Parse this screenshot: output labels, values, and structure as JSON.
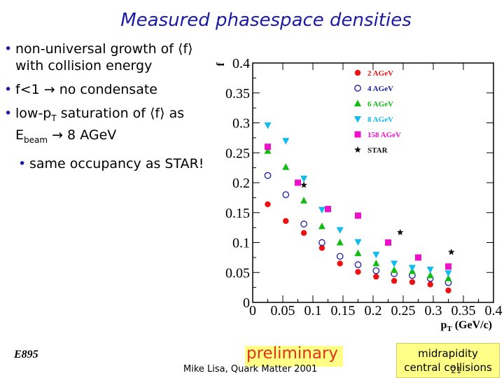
{
  "slide": {
    "title": "Measured phasespace densities",
    "bullets": [
      {
        "line1": "non-universal growth of ⟨f⟩",
        "line2": "with collision energy"
      },
      {
        "line1": "f<1 → no condensate"
      },
      {
        "line1a": "low-p",
        "line1b": "T",
        "line1c": " saturation of ⟨f⟩ as",
        "line2a": "E",
        "line2b": "beam",
        "line2c": " → 8 AGeV"
      }
    ],
    "sub_bullet": "same occupancy as STAR!",
    "bullet_glyph": "•",
    "experiment": "E895",
    "preliminary": "preliminary",
    "footer": "Mike Lisa, Quark Matter 2001",
    "midrapidity_line1": "midrapidity",
    "midrapidity_line2": "central collisions",
    "page_number": "21",
    "colors": {
      "title": "#1a1aa6",
      "highlight": "#ffff88",
      "preliminary": "#e0331a"
    }
  },
  "chart_data": {
    "type": "scatter",
    "ylabel": "f",
    "xlabel_main": "p",
    "xlabel_sub": "T",
    "xlabel_unit": " (GeV/c)",
    "xlim": [
      0,
      0.4
    ],
    "ylim": [
      0,
      0.4
    ],
    "xticks": [
      "0",
      "0.05",
      "0.1",
      "0.15",
      "0.2",
      "0.25",
      "0.3",
      "0.35",
      "0.4"
    ],
    "yticks": [
      "0",
      "0.05",
      "0.1",
      "0.15",
      "0.2",
      "0.25",
      "0.3",
      "0.35",
      "0.4"
    ],
    "legend_position": "top-right",
    "series": [
      {
        "name": "2 AGeV",
        "color": "#ee1111",
        "marker": "circle",
        "x": [
          0.025,
          0.055,
          0.085,
          0.115,
          0.145,
          0.175,
          0.205,
          0.235,
          0.265,
          0.295,
          0.325
        ],
        "y": [
          0.164,
          0.136,
          0.116,
          0.091,
          0.065,
          0.051,
          0.043,
          0.036,
          0.034,
          0.03,
          0.02
        ]
      },
      {
        "name": "4 AGeV",
        "color": "#1a1aa6",
        "marker": "open-circle",
        "x": [
          0.025,
          0.055,
          0.085,
          0.115,
          0.145,
          0.175,
          0.205,
          0.235,
          0.265,
          0.295,
          0.325
        ],
        "y": [
          0.212,
          0.18,
          0.131,
          0.1,
          0.077,
          0.063,
          0.053,
          0.048,
          0.045,
          0.04,
          0.033
        ]
      },
      {
        "name": "6 AGeV",
        "color": "#11bb11",
        "marker": "triangle-up",
        "x": [
          0.025,
          0.055,
          0.085,
          0.115,
          0.145,
          0.175,
          0.205,
          0.235,
          0.265,
          0.295,
          0.325
        ],
        "y": [
          0.253,
          0.226,
          0.17,
          0.127,
          0.1,
          0.082,
          0.065,
          0.054,
          0.052,
          0.045,
          0.04
        ]
      },
      {
        "name": "8 AGeV",
        "color": "#11bbee",
        "marker": "triangle-down",
        "x": [
          0.025,
          0.055,
          0.085,
          0.115,
          0.145,
          0.175,
          0.205,
          0.235,
          0.265,
          0.295,
          0.325
        ],
        "y": [
          0.296,
          0.27,
          0.207,
          0.155,
          0.121,
          0.101,
          0.08,
          0.065,
          0.058,
          0.055,
          0.049
        ]
      },
      {
        "name": "158 AGeV",
        "color": "#ee11cc",
        "marker": "square",
        "x": [
          0.025,
          0.075,
          0.125,
          0.175,
          0.225,
          0.275,
          0.325
        ],
        "y": [
          0.26,
          0.2,
          0.156,
          0.145,
          0.1,
          0.075,
          0.06
        ]
      },
      {
        "name": "STAR",
        "color": "#111111",
        "marker": "star",
        "x": [
          0.085,
          0.245,
          0.33
        ],
        "y": [
          0.196,
          0.117,
          0.084
        ]
      }
    ]
  }
}
